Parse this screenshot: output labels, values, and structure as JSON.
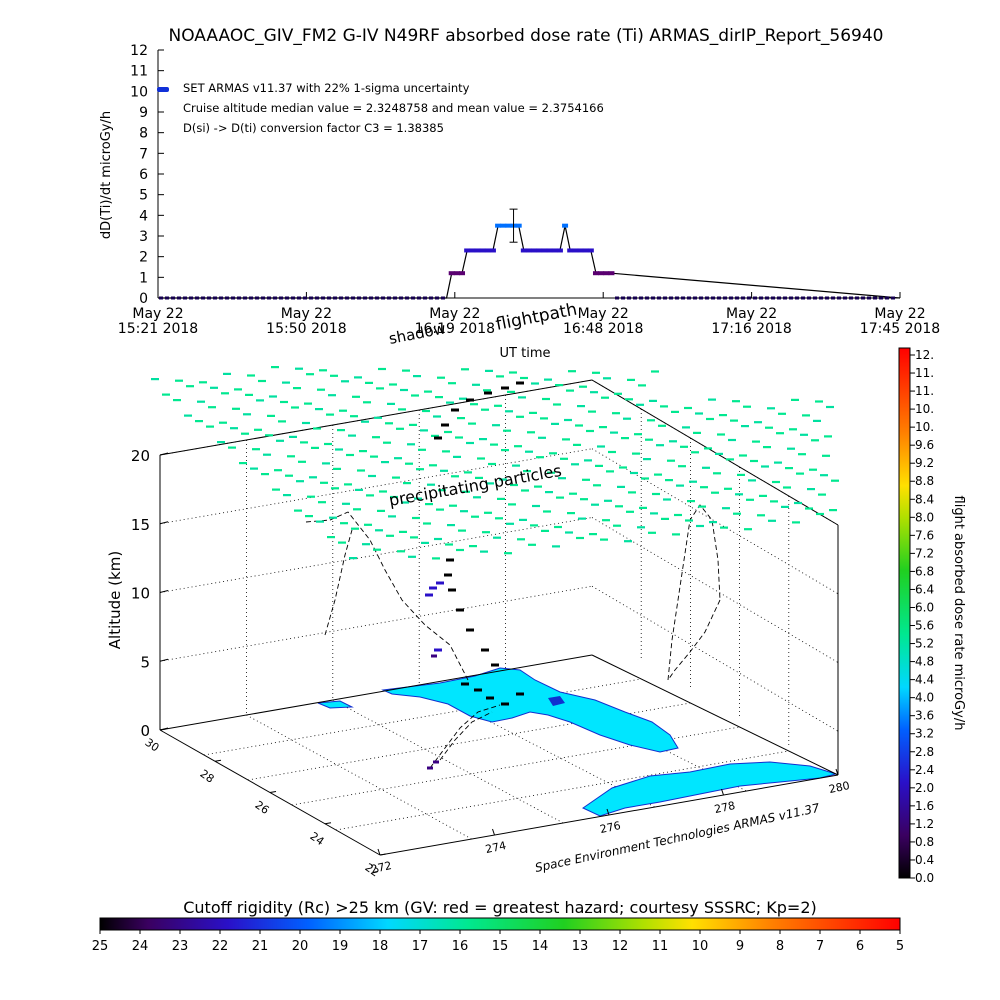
{
  "title": "NOAAAOC_GIV_FM2 G-IV   N49RF  absorbed dose rate (Ti) ARMAS_dirIP_Report_56940",
  "credit": "Space Environment Technologies ARMAS v11.37",
  "chart_data": [
    {
      "type": "line",
      "ylabel": "dD(Ti)/dt microGy/h",
      "xlabel": "UT time",
      "ylim": [
        0,
        12
      ],
      "y_ticks": [
        "0",
        "1",
        "2",
        "3",
        "4",
        "5",
        "6",
        "7",
        "8",
        "9",
        "10",
        "11",
        "12"
      ],
      "x_ticks": [
        {
          "date": "May 22",
          "time": "15:21 2018"
        },
        {
          "date": "May 22",
          "time": "15:50 2018"
        },
        {
          "date": "May 22",
          "time": "16:19 2018"
        },
        {
          "date": "May 22",
          "time": "16:48 2018"
        },
        {
          "date": "May 22",
          "time": "17:16 2018"
        },
        {
          "date": "May 22",
          "time": "17:45 2018"
        }
      ],
      "legend": {
        "series_label": "SET ARMAS v11.37 with 22% 1-sigma uncertainty",
        "note1": "Cruise altitude median value = 2.3248758 and mean value = 2.3754166",
        "note2": "D(si) -> D(ti) conversion factor C3 = 1.38385",
        "placement": "top-left"
      },
      "series": [
        {
          "x": [
            "15:21",
            "16:17",
            "16:18",
            "16:19",
            "16:20",
            "16:21",
            "16:22",
            "16:23",
            "16:24",
            "16:25",
            "16:26",
            "16:27",
            "16:28",
            "16:29",
            "16:30",
            "16:31",
            "16:32",
            "16:33",
            "16:34",
            "16:35",
            "16:36",
            "16:37",
            "16:38",
            "16:39",
            "16:40",
            "16:41",
            "16:42",
            "16:43",
            "16:44",
            "16:45",
            "16:46",
            "16:47",
            "16:48",
            "16:49",
            "17:45"
          ],
          "values": [
            0,
            0,
            1.2,
            1.2,
            1.2,
            2.3,
            2.3,
            2.3,
            2.3,
            2.3,
            2.3,
            3.5,
            3.5,
            3.5,
            3.5,
            3.5,
            2.3,
            2.3,
            2.3,
            2.3,
            2.3,
            2.3,
            2.3,
            2.3,
            3.5,
            2.3,
            2.3,
            2.3,
            2.3,
            2.3,
            1.2,
            1.2,
            1.2,
            1.2,
            0
          ]
        }
      ],
      "error_bar": {
        "x": "16:30",
        "value": 3.5,
        "upper": 4.3,
        "lower": 2.7
      }
    },
    {
      "type": "scatter",
      "zlabel": "Altitude (km)",
      "z_ticks": [
        "0",
        "5",
        "10",
        "15",
        "20"
      ],
      "lat_ticks": [
        "30",
        "28",
        "26",
        "24",
        "22"
      ],
      "lon_ticks": [
        "272",
        "274",
        "276",
        "278",
        "280"
      ],
      "annotations": [
        "flightpath",
        "shadow",
        "precipitating particles"
      ],
      "colorbar": {
        "label": "flight absorbed dose rate microGy/h",
        "ticks": [
          "12.",
          "11.",
          "11.",
          "10.",
          "10.",
          "9.6",
          "9.2",
          "8.8",
          "8.4",
          "8.0",
          "7.6",
          "7.2",
          "6.8",
          "6.4",
          "6.0",
          "5.6",
          "5.2",
          "4.8",
          "4.4",
          "4.0",
          "3.6",
          "3.2",
          "2.8",
          "2.4",
          "2.0",
          "1.6",
          "1.2",
          "0.8",
          "0.4",
          "0.0"
        ]
      }
    },
    {
      "type": "heatmap",
      "title": "Cutoff rigidity (Rc) >25 km (GV: red = greatest hazard; courtesy SSSRC; Kp=2)",
      "ticks": [
        "25",
        "24",
        "23",
        "22",
        "21",
        "20",
        "19",
        "18",
        "17",
        "16",
        "15",
        "14",
        "13",
        "12",
        "11",
        "10",
        "9",
        "8",
        "7",
        "6",
        "5"
      ]
    }
  ]
}
